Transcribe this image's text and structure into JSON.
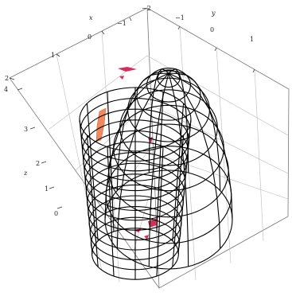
{
  "axes": {
    "x": {
      "label": "x",
      "ticks": [
        "2",
        "1",
        "0",
        "−1",
        "−2"
      ]
    },
    "y": {
      "label": "y",
      "ticks": [
        "−1",
        "0",
        "1"
      ]
    },
    "z": {
      "label": "z",
      "ticks": [
        "4",
        "3",
        "2",
        "1",
        "0"
      ]
    }
  },
  "colors": {
    "background": "#ffffff",
    "box": "#777777",
    "grid": "#bbbbbb",
    "mesh": "#000000",
    "surface_patch": "#f08a5d",
    "accent_patch": "#d62d5a"
  }
}
